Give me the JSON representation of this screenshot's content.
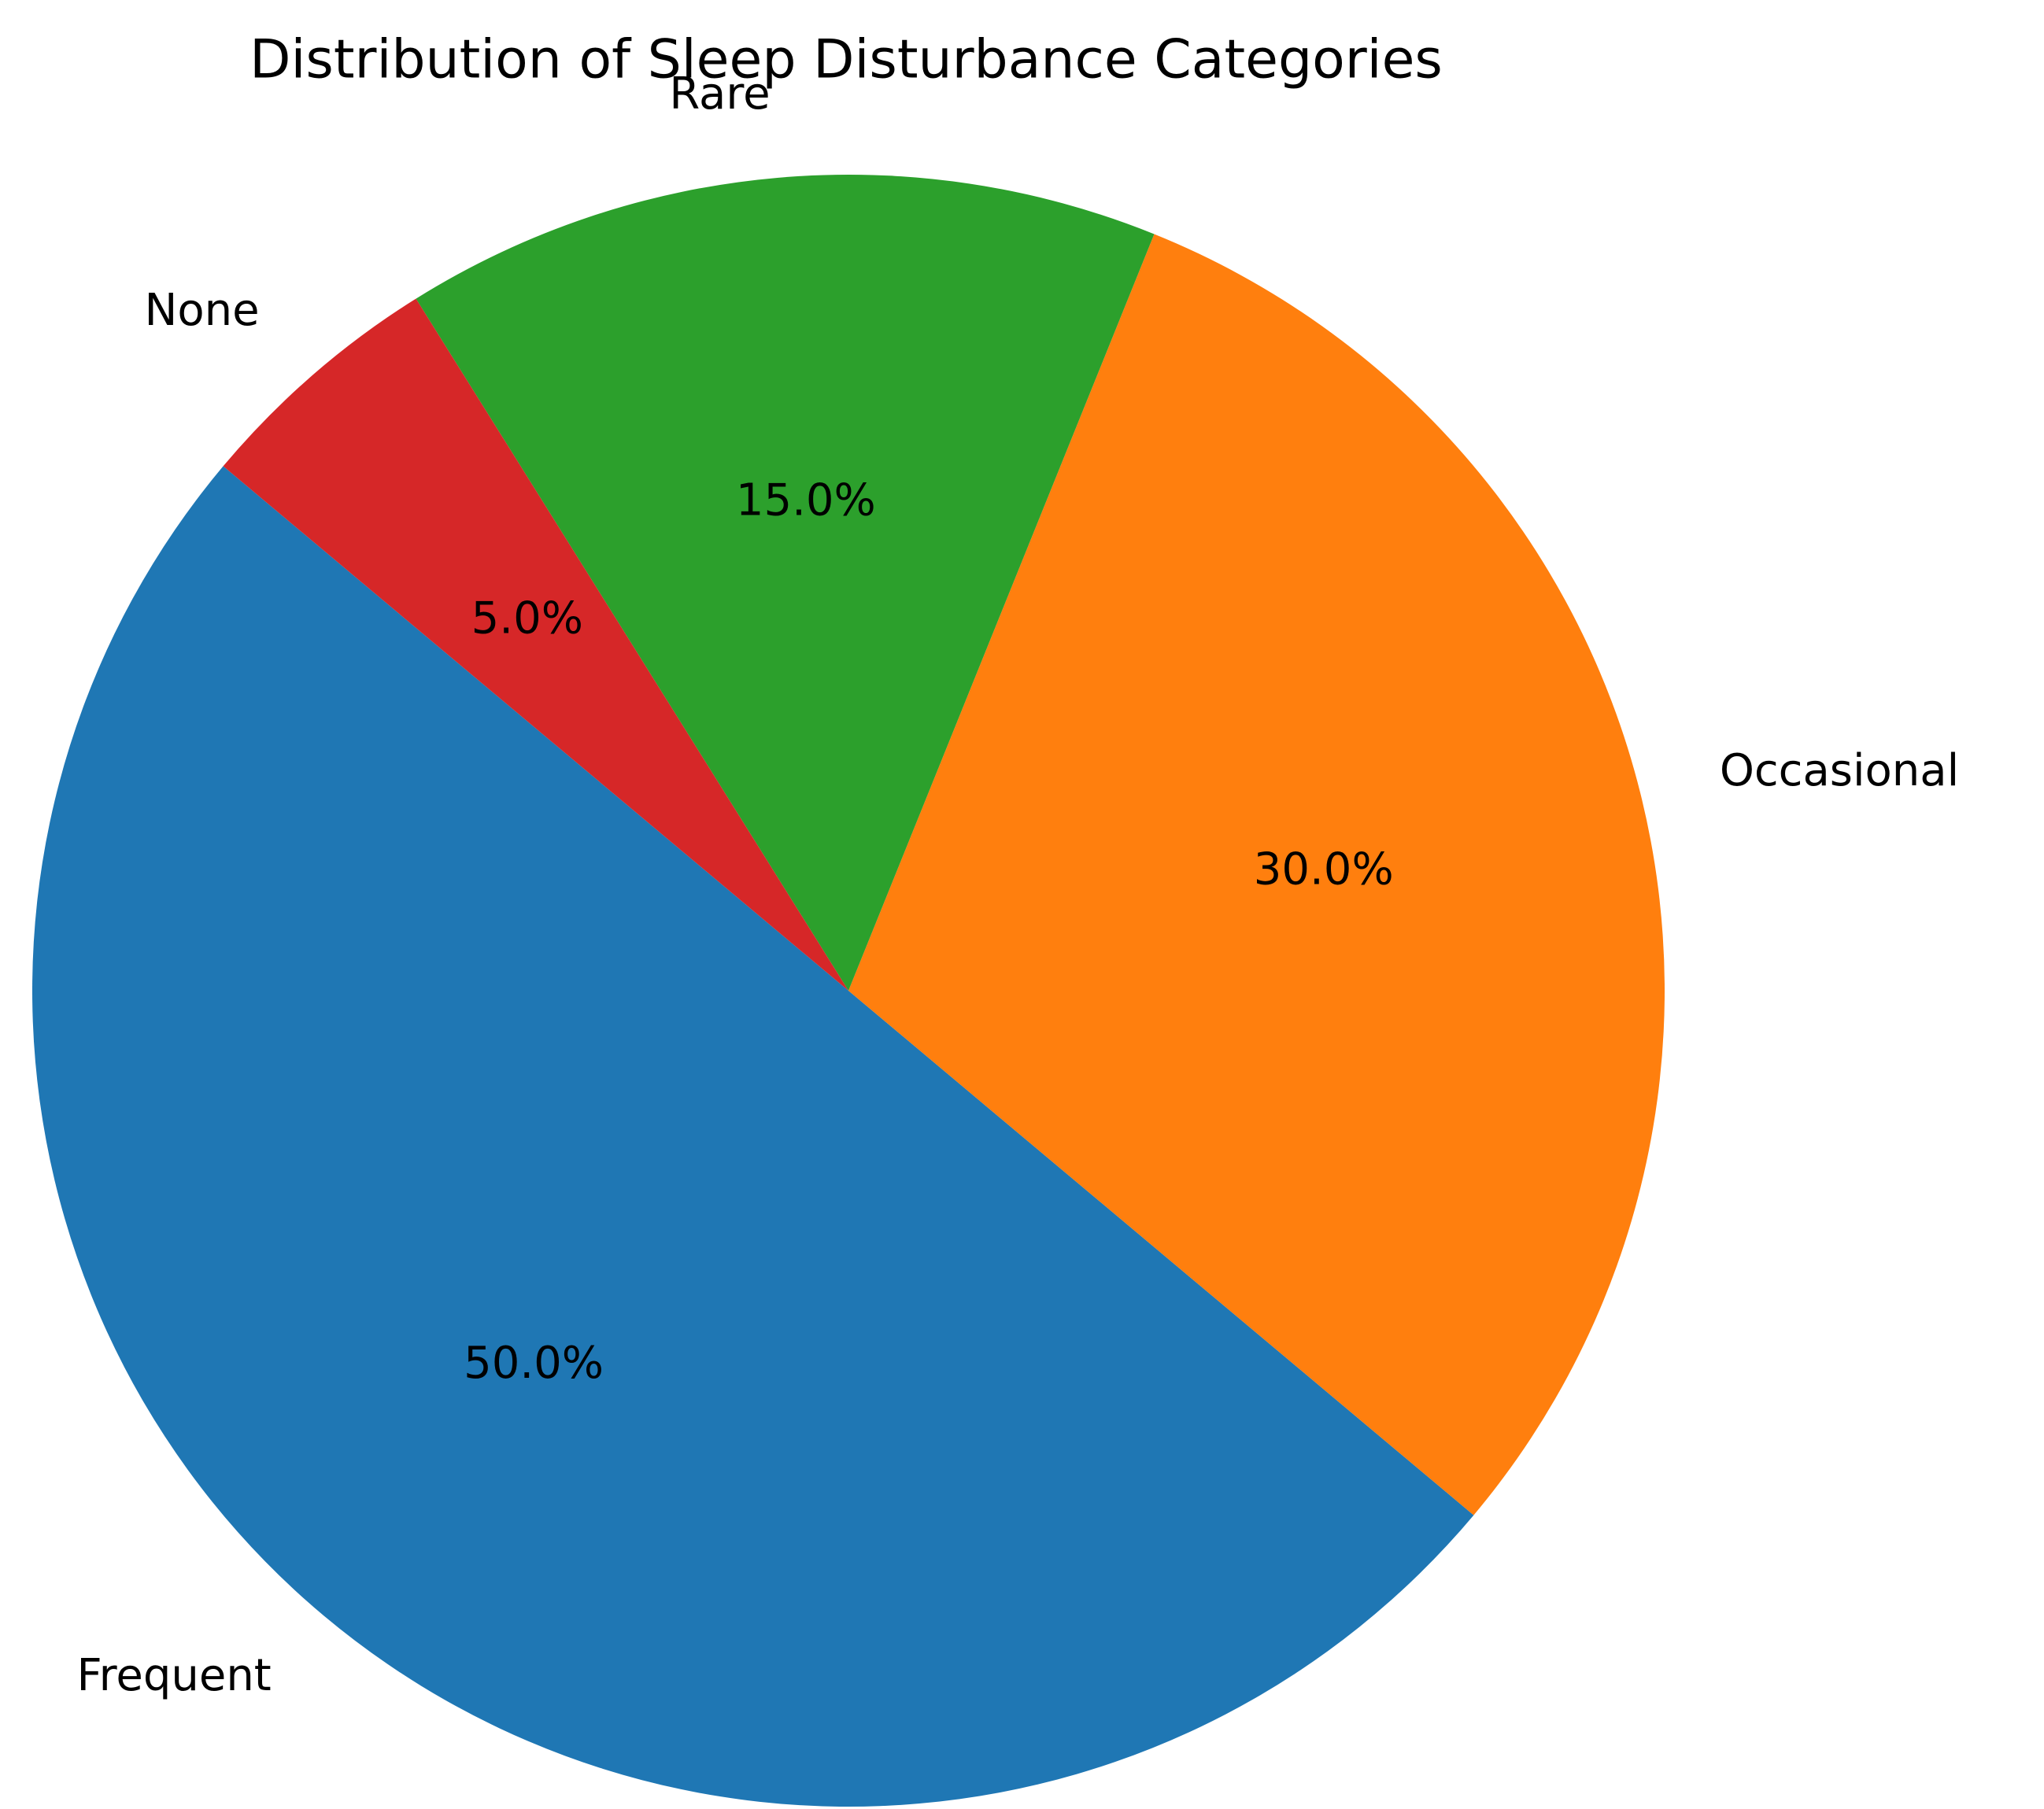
{
  "chart_data": {
    "type": "pie",
    "title": "Distribution of Sleep Disturbance Categories",
    "categories": [
      "Frequent",
      "Occasional",
      "Rare",
      "None"
    ],
    "values": [
      50,
      30,
      15,
      5
    ],
    "value_labels": [
      "50.0%",
      "30.0%",
      "15.0%",
      "5.0%"
    ],
    "colors": [
      "#1f77b4",
      "#ff7f0e",
      "#2ca02c",
      "#d62728"
    ]
  }
}
